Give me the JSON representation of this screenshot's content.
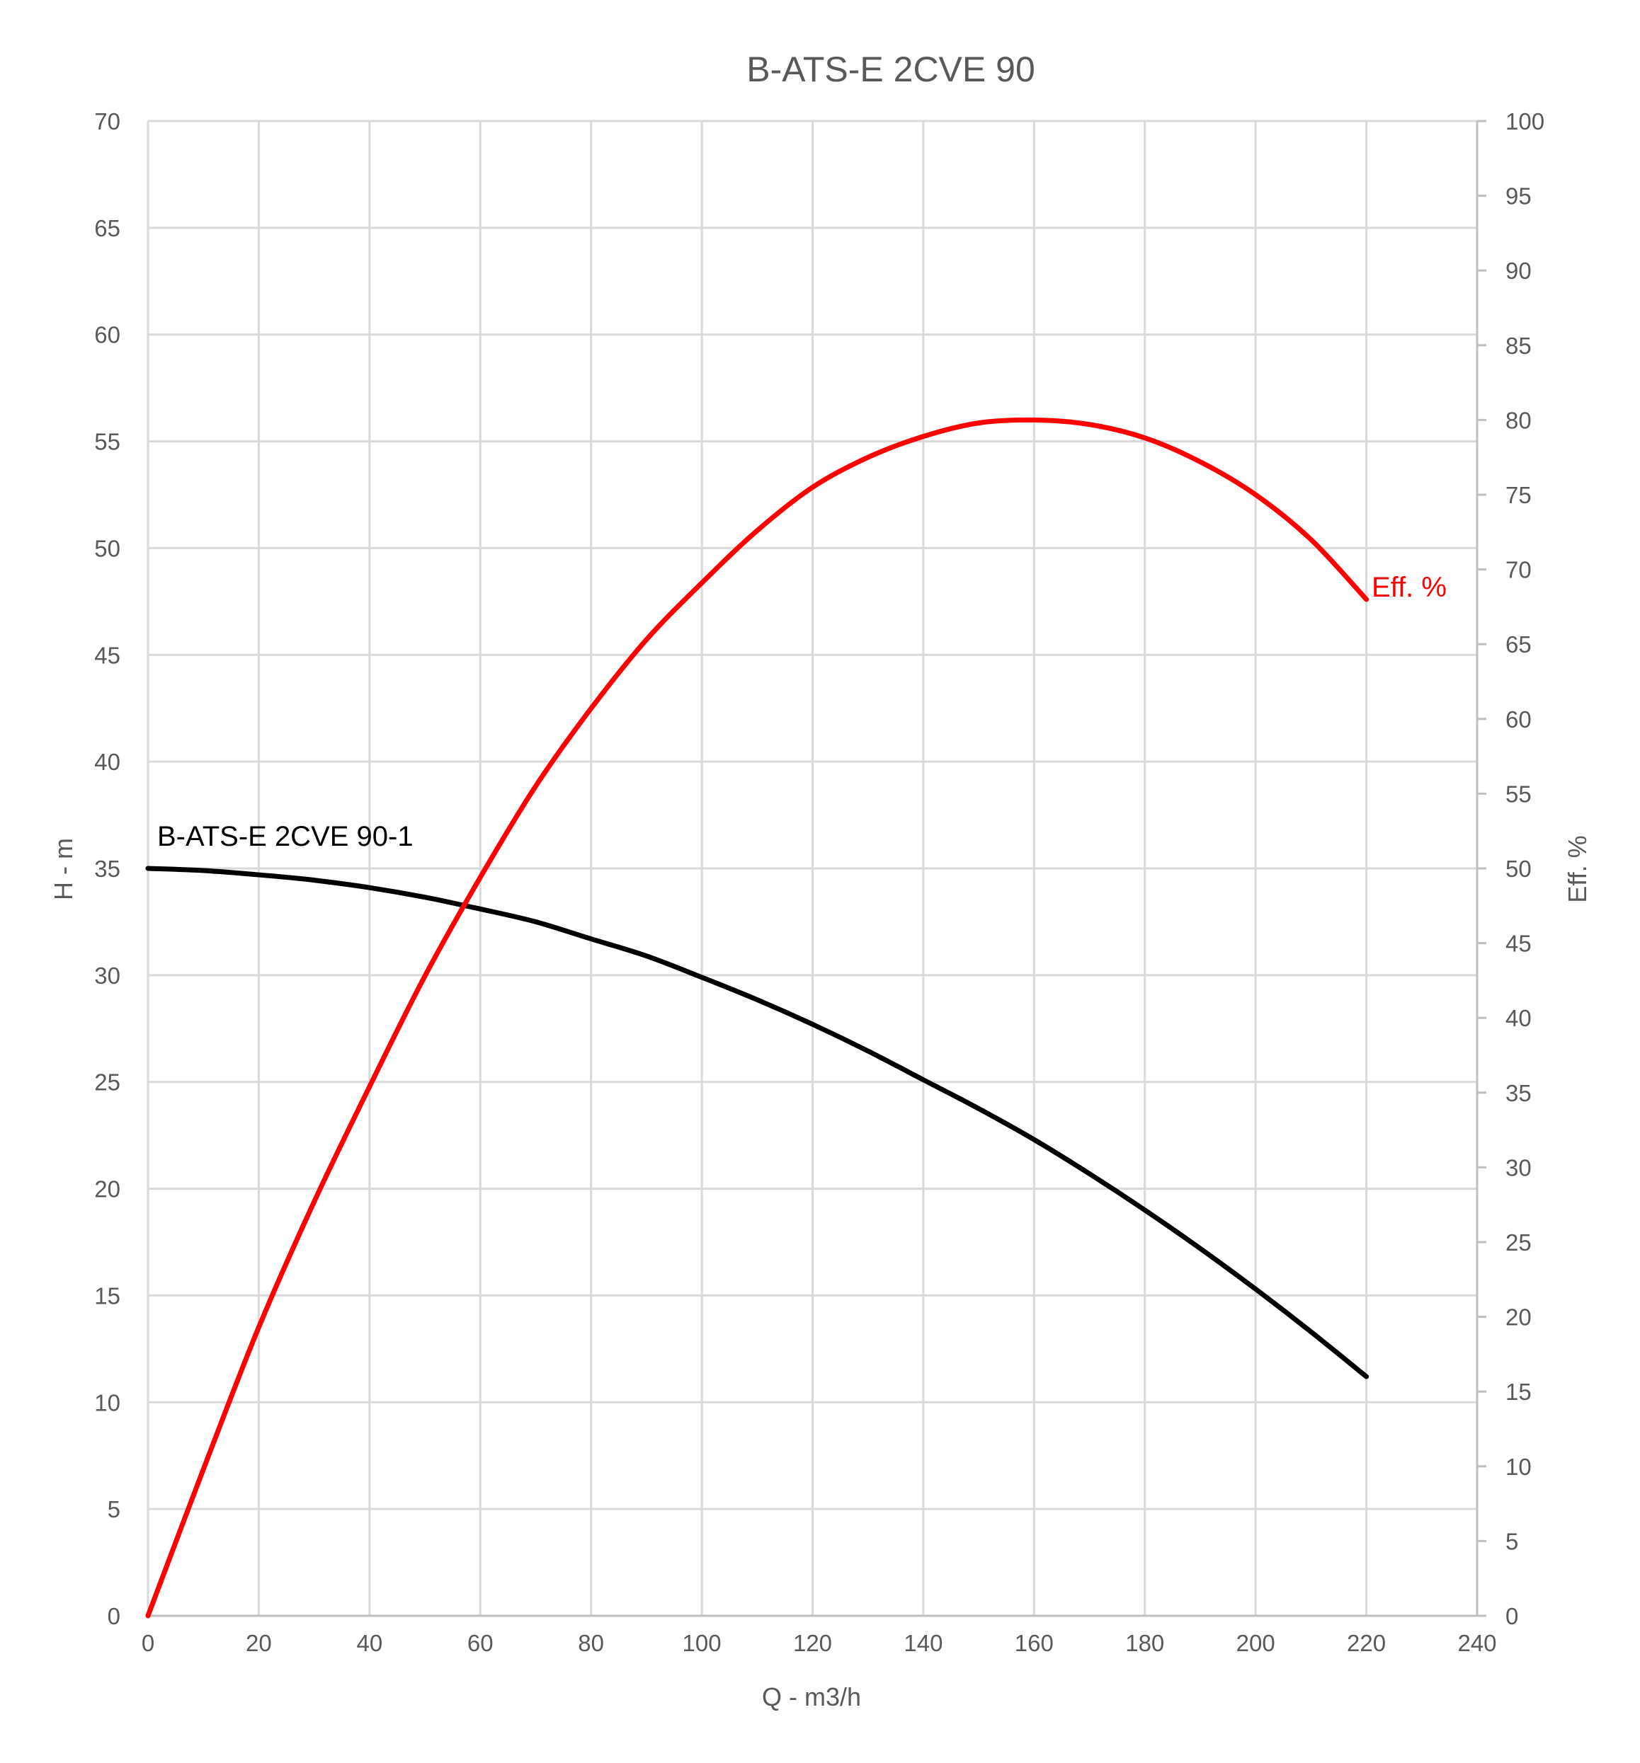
{
  "chart_data": {
    "type": "line",
    "title": "B-ATS-E 2CVE 90",
    "xlabel": "Q - m3/h",
    "ylabel": "H - m",
    "y2label": "Eff. %",
    "xlim": [
      0,
      240
    ],
    "ylim": [
      0,
      70
    ],
    "y2lim": [
      0,
      100
    ],
    "xticks": [
      0,
      20,
      40,
      60,
      80,
      100,
      120,
      140,
      160,
      180,
      200,
      220,
      240
    ],
    "yticks": [
      0,
      5,
      10,
      15,
      20,
      25,
      30,
      35,
      40,
      45,
      50,
      55,
      60,
      65,
      70
    ],
    "y2ticks": [
      0,
      5,
      10,
      15,
      20,
      25,
      30,
      35,
      40,
      45,
      50,
      55,
      60,
      65,
      70,
      75,
      80,
      85,
      90,
      95,
      100
    ],
    "grid": true,
    "series": [
      {
        "name": "B-ATS-E 2CVE 90-1",
        "axis": "left",
        "color": "#000000",
        "x": [
          0,
          10,
          20,
          30,
          40,
          50,
          60,
          70,
          80,
          90,
          100,
          110,
          120,
          130,
          140,
          150,
          160,
          170,
          180,
          190,
          200,
          210,
          220
        ],
        "y": [
          35,
          34.9,
          34.7,
          34.45,
          34.1,
          33.65,
          33.1,
          32.5,
          31.7,
          30.9,
          29.9,
          28.85,
          27.7,
          26.45,
          25.1,
          23.75,
          22.3,
          20.7,
          19.0,
          17.2,
          15.3,
          13.3,
          11.2
        ]
      },
      {
        "name": "Eff. %",
        "axis": "right",
        "color": "#ff0000",
        "x": [
          0,
          10,
          20,
          30,
          40,
          50,
          60,
          70,
          80,
          90,
          100,
          110,
          120,
          130,
          140,
          150,
          160,
          170,
          180,
          190,
          200,
          210,
          220
        ],
        "y": [
          0,
          9.8,
          19.3,
          27.7,
          35.4,
          42.8,
          49.4,
          55.5,
          60.7,
          65.3,
          69.1,
          72.6,
          75.5,
          77.5,
          78.9,
          79.8,
          80,
          79.7,
          78.8,
          77.2,
          75,
          72,
          68
        ]
      }
    ]
  }
}
